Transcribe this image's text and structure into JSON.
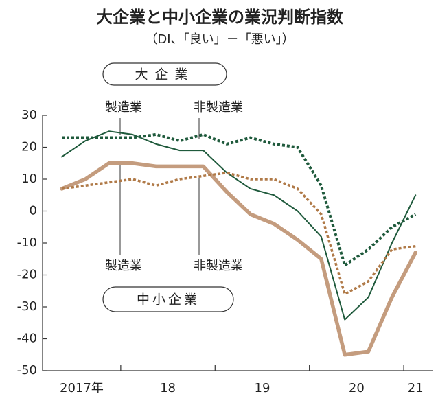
{
  "chart_data": {
    "type": "line",
    "title": "大企業と中小企業の業況判断指数",
    "subtitle": "（DI、「良い」－「悪い」）",
    "groups": [
      "大企業",
      "中小企業"
    ],
    "categories": [
      "2017年",
      null,
      null,
      "18",
      null,
      null,
      null,
      "19",
      null,
      null,
      null,
      "20",
      null,
      null,
      null,
      "21"
    ],
    "series": [
      {
        "name": "製造業",
        "color": "#1f5a3c",
        "style": "solid",
        "values": [
          17,
          22,
          25,
          24,
          21,
          19,
          19,
          12,
          7,
          5,
          0,
          -8,
          -34,
          -27,
          -10,
          5
        ]
      },
      {
        "name": "非製造業",
        "color": "#1f5a3c",
        "style": "dotted",
        "values": [
          23,
          23,
          23,
          23,
          24,
          22,
          24,
          21,
          23,
          21,
          20,
          8,
          -17,
          -12,
          -5,
          -1
        ]
      },
      {
        "name": "製造業",
        "color": "#c49c7e",
        "style": "solid",
        "values": [
          7,
          10,
          15,
          15,
          14,
          14,
          14,
          6,
          -1,
          -4,
          -9,
          -15,
          -45,
          -44,
          -27,
          -13
        ]
      },
      {
        "name": "非製造業",
        "color": "#b07a48",
        "style": "dotted",
        "values": [
          7,
          8,
          9,
          10,
          8,
          10,
          11,
          12,
          10,
          10,
          7,
          -1,
          -26,
          -22,
          -12,
          -11
        ]
      }
    ],
    "ylim": [
      -50,
      30
    ],
    "yticks": [
      30,
      20,
      10,
      0,
      -10,
      -20,
      -30,
      -40,
      -50
    ],
    "zero_line": true
  }
}
